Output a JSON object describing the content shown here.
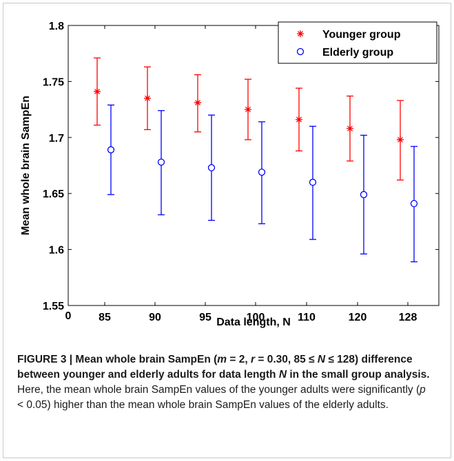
{
  "chart_data": {
    "type": "scatter",
    "categories": [
      "85",
      "90",
      "95",
      "100",
      "110",
      "120",
      "128"
    ],
    "x_zero_label": "0",
    "xlabel": "Data length, N",
    "ylabel": "Mean whole brain SampEn",
    "ylim": [
      1.55,
      1.8
    ],
    "yticks": [
      "1.55",
      "1.6",
      "1.65",
      "1.7",
      "1.75",
      "1.8"
    ],
    "legend_position": "top-right",
    "series": [
      {
        "name": "Younger group",
        "marker": "asterisk",
        "color": "#ff0000",
        "values": [
          1.741,
          1.735,
          1.731,
          1.725,
          1.716,
          1.708,
          1.698
        ],
        "lower": [
          1.711,
          1.707,
          1.705,
          1.698,
          1.688,
          1.679,
          1.662
        ],
        "upper": [
          1.771,
          1.763,
          1.756,
          1.752,
          1.744,
          1.737,
          1.733
        ]
      },
      {
        "name": "Elderly group",
        "marker": "circle",
        "color": "#0000ff",
        "values": [
          1.689,
          1.678,
          1.673,
          1.669,
          1.66,
          1.649,
          1.641
        ],
        "lower": [
          1.649,
          1.631,
          1.626,
          1.623,
          1.609,
          1.596,
          1.589
        ],
        "upper": [
          1.729,
          1.724,
          1.72,
          1.714,
          1.71,
          1.702,
          1.692
        ]
      }
    ]
  },
  "caption": {
    "figure_label": "FIGURE 3 | Mean whole brain SampEn (",
    "m_var": "m",
    "part1": " = 2, ",
    "r_var": "r",
    "part2": " = 0.30, 85 ≤ ",
    "n_var1": "N",
    "part3": " ≤ 128) difference between younger and elderly adults for data length ",
    "n_var2": "N",
    "part4": " in the small group analysis.",
    "body_pre": " Here, the mean whole brain SampEn values of the younger adults were significantly (",
    "p_var": "p",
    "body_post": " < 0.05) higher than the mean whole brain SampEn values of the elderly adults."
  }
}
